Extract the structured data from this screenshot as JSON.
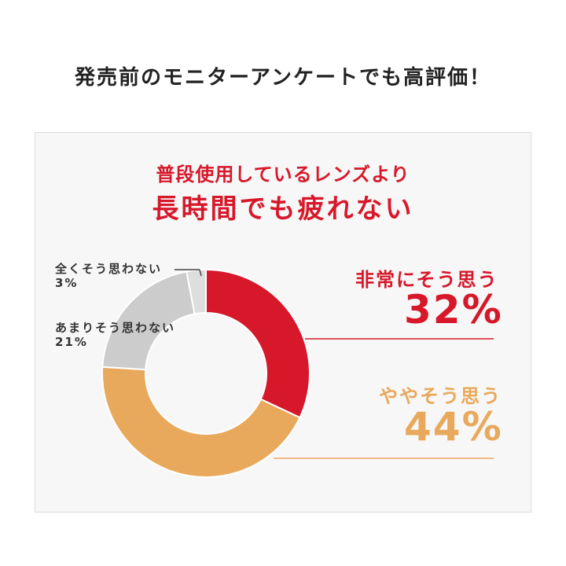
{
  "page_title": "発売前のモニターアンケートでも高評価！",
  "headline": {
    "line1": "普段使用しているレンズより",
    "line2": "長時間でも疲れない"
  },
  "chart_data": {
    "type": "pie",
    "series": [
      {
        "name": "非常にそう思う",
        "value": 32,
        "label": "32%",
        "color": "#d7182a"
      },
      {
        "name": "ややそう思う",
        "value": 44,
        "label": "44%",
        "color": "#e9a95c"
      },
      {
        "name": "あまりそう思わない",
        "value": 21,
        "label": "21%",
        "color": "#cccccc"
      },
      {
        "name": "全くそう思わない",
        "value": 3,
        "label": "3%",
        "color": "#dedede"
      }
    ]
  }
}
